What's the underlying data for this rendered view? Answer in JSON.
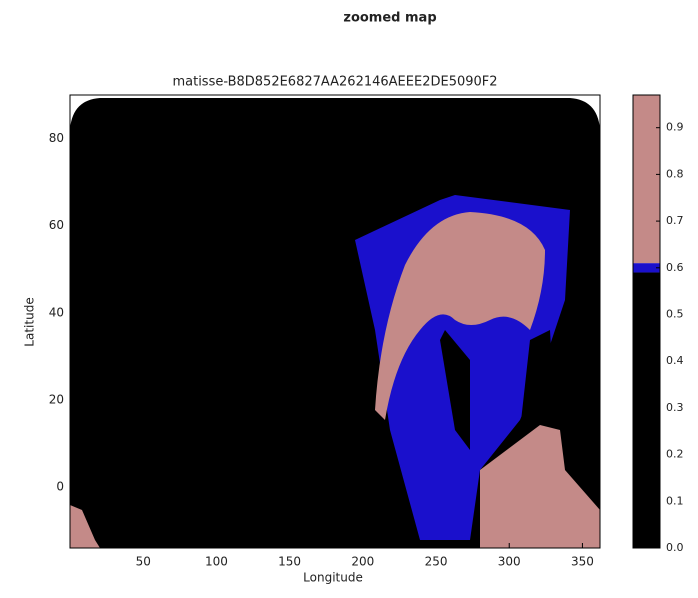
{
  "chart_data": {
    "type": "map",
    "title": "zoomed map",
    "subtitle": "matisse-B8D852E6827AA262146AEEE2DE5090F2",
    "xlabel": "Longitude",
    "ylabel": "Latitude",
    "xlim": [
      0,
      362
    ],
    "xticks": [
      50,
      100,
      150,
      200,
      250,
      300,
      350
    ],
    "ylim": [
      -14,
      90
    ],
    "yticks": [
      0,
      20,
      40,
      60,
      80
    ],
    "colorbar": {
      "lim": [
        0,
        0.97
      ],
      "ticks": [
        {
          "value": 0,
          "label": "0.0"
        },
        0.1,
        0.2,
        0.3,
        0.4,
        0.5,
        0.6,
        0.7,
        0.8,
        0.9
      ],
      "bounds": [
        0,
        0.59,
        0.61,
        0.97
      ],
      "colors": [
        "#000000",
        "#1a10cc",
        "#c48a88"
      ]
    }
  }
}
